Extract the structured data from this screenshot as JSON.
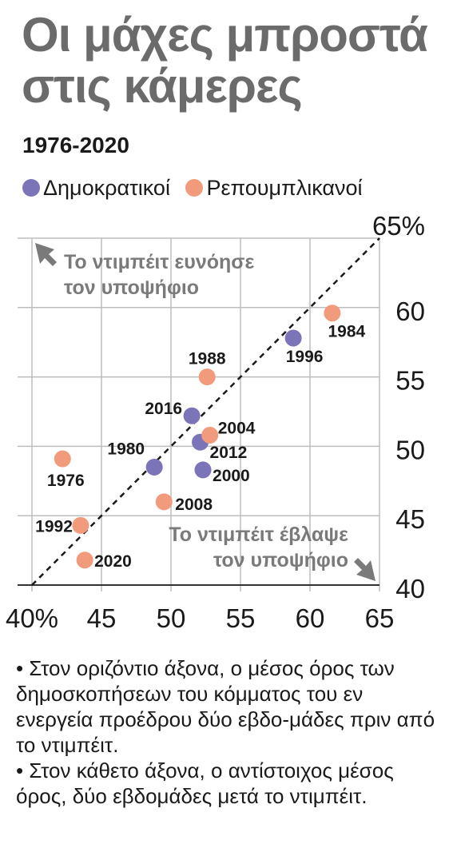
{
  "title_lines": [
    "Οι μάχες μπροστά",
    "στις κάμερες"
  ],
  "subtitle": "1976-2020",
  "colors": {
    "democrats": "#7b74b8",
    "republicans": "#f29a7c",
    "title": "#6b6b6b",
    "grid": "#bdbdbd",
    "annotation": "#7a7a7a"
  },
  "notes": [
    "• Στον οριζόντιο άξονα, ο μέσος όρος των δημοσκοπήσεων του κόμματος του εν ενεργεία προέδρου δύο εβδο-μάδες πριν από το ντιμπέιτ.",
    "• Στον κάθετο άξονα, ο αντίστοιχος μέσος όρος, δύο εβδομάδες μετά το ντιμπέιτ."
  ],
  "chart_data": {
    "type": "scatter",
    "title": "Οι μάχες μπροστά στις κάμερες",
    "subtitle": "1976-2020",
    "x_range": [
      40,
      65
    ],
    "y_range": [
      40,
      65
    ],
    "x_ticks": [
      40,
      45,
      50,
      55,
      60,
      65
    ],
    "x_tick_labels": [
      "40%",
      "45",
      "50",
      "55",
      "60",
      "65"
    ],
    "y_ticks": [
      40,
      45,
      50,
      55,
      60,
      65
    ],
    "y_tick_labels": [
      "40",
      "45",
      "50",
      "55",
      "60",
      "65%"
    ],
    "grid": true,
    "diagonal_line": true,
    "legend_position": "top-left",
    "series": [
      {
        "name": "Δημοκρατικοί",
        "color": "#7b74b8",
        "points": [
          {
            "label": "1996",
            "x": 58.8,
            "y": 57.8
          },
          {
            "label": "2016",
            "x": 51.5,
            "y": 52.2
          },
          {
            "label": "2012",
            "x": 52.1,
            "y": 50.3
          },
          {
            "label": "1980",
            "x": 48.8,
            "y": 48.5
          },
          {
            "label": "2000",
            "x": 52.3,
            "y": 48.3
          }
        ]
      },
      {
        "name": "Ρεπουμπλικανοί",
        "color": "#f29a7c",
        "points": [
          {
            "label": "1984",
            "x": 61.6,
            "y": 59.6
          },
          {
            "label": "1988",
            "x": 52.6,
            "y": 55.0
          },
          {
            "label": "2004",
            "x": 52.8,
            "y": 50.8
          },
          {
            "label": "1976",
            "x": 42.2,
            "y": 49.1
          },
          {
            "label": "2008",
            "x": 49.5,
            "y": 46.0
          },
          {
            "label": "1992",
            "x": 43.5,
            "y": 44.3
          },
          {
            "label": "2020",
            "x": 43.8,
            "y": 41.8
          }
        ]
      }
    ],
    "annotations": [
      {
        "lines": [
          "Το ντιμπέιτ ευνόησε",
          "τον υποψήφιο"
        ],
        "position": "top-left"
      },
      {
        "lines": [
          "Το ντιμπέιτ έβλαψε",
          "τον υποψήφιο"
        ],
        "position": "bottom-right"
      }
    ]
  }
}
